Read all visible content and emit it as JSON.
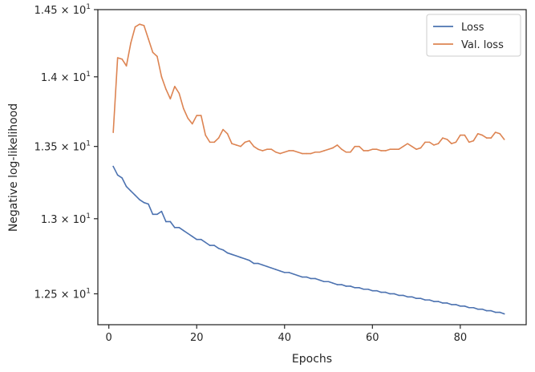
{
  "chart_data": {
    "type": "line",
    "title": "",
    "xlabel": "Epochs",
    "ylabel": "Negative log-likelihood",
    "xlim": [
      -2.5,
      95
    ],
    "ylim": [
      12.3,
      14.5
    ],
    "y_scale": "log",
    "grid": false,
    "legend_position": "top-right",
    "x_ticks": [
      0,
      20,
      40,
      60,
      80
    ],
    "x_tick_labels": [
      "0",
      "20",
      "40",
      "60",
      "80"
    ],
    "y_ticks": [
      12.5,
      13.0,
      13.5,
      14.0,
      14.5
    ],
    "y_tick_labels": [
      {
        "mantissa": "1.25",
        "base": "10",
        "exp": "1"
      },
      {
        "mantissa": "1.3",
        "base": "10",
        "exp": "1"
      },
      {
        "mantissa": "1.35",
        "base": "10",
        "exp": "1"
      },
      {
        "mantissa": "1.4",
        "base": "10",
        "exp": "1"
      },
      {
        "mantissa": "1.45",
        "base": "10",
        "exp": "1"
      }
    ],
    "series": [
      {
        "name": "Loss",
        "color": "#4c72b0",
        "x": [
          1,
          2,
          3,
          4,
          5,
          6,
          7,
          8,
          9,
          10,
          11,
          12,
          13,
          14,
          15,
          16,
          17,
          18,
          19,
          20,
          21,
          22,
          23,
          24,
          25,
          26,
          27,
          28,
          29,
          30,
          31,
          32,
          33,
          34,
          35,
          36,
          37,
          38,
          39,
          40,
          41,
          42,
          43,
          44,
          45,
          46,
          47,
          48,
          49,
          50,
          51,
          52,
          53,
          54,
          55,
          56,
          57,
          58,
          59,
          60,
          61,
          62,
          63,
          64,
          65,
          66,
          67,
          68,
          69,
          70,
          71,
          72,
          73,
          74,
          75,
          76,
          77,
          78,
          79,
          80,
          81,
          82,
          83,
          84,
          85,
          86,
          87,
          88,
          89,
          90
        ],
        "y": [
          13.36,
          13.3,
          13.28,
          13.22,
          13.19,
          13.16,
          13.13,
          13.11,
          13.1,
          13.03,
          13.03,
          13.05,
          12.98,
          12.98,
          12.94,
          12.94,
          12.92,
          12.9,
          12.88,
          12.86,
          12.86,
          12.84,
          12.82,
          12.82,
          12.8,
          12.79,
          12.77,
          12.76,
          12.75,
          12.74,
          12.73,
          12.72,
          12.7,
          12.7,
          12.69,
          12.68,
          12.67,
          12.66,
          12.65,
          12.64,
          12.64,
          12.63,
          12.62,
          12.61,
          12.61,
          12.6,
          12.6,
          12.59,
          12.58,
          12.58,
          12.57,
          12.56,
          12.56,
          12.55,
          12.55,
          12.54,
          12.54,
          12.53,
          12.53,
          12.52,
          12.52,
          12.51,
          12.51,
          12.5,
          12.5,
          12.49,
          12.49,
          12.48,
          12.48,
          12.47,
          12.47,
          12.46,
          12.46,
          12.45,
          12.45,
          12.44,
          12.44,
          12.43,
          12.43,
          12.42,
          12.42,
          12.41,
          12.41,
          12.4,
          12.4,
          12.39,
          12.39,
          12.38,
          12.38,
          12.37
        ]
      },
      {
        "name": "Val. loss",
        "color": "#dd8452",
        "x": [
          1,
          2,
          3,
          4,
          5,
          6,
          7,
          8,
          9,
          10,
          11,
          12,
          13,
          14,
          15,
          16,
          17,
          18,
          19,
          20,
          21,
          22,
          23,
          24,
          25,
          26,
          27,
          28,
          29,
          30,
          31,
          32,
          33,
          34,
          35,
          36,
          37,
          38,
          39,
          40,
          41,
          42,
          43,
          44,
          45,
          46,
          47,
          48,
          49,
          50,
          51,
          52,
          53,
          54,
          55,
          56,
          57,
          58,
          59,
          60,
          61,
          62,
          63,
          64,
          65,
          66,
          67,
          68,
          69,
          70,
          71,
          72,
          73,
          74,
          75,
          76,
          77,
          78,
          79,
          80,
          81,
          82,
          83,
          84,
          85,
          86,
          87,
          88,
          89,
          90
        ],
        "y": [
          13.6,
          14.14,
          14.13,
          14.08,
          14.25,
          14.37,
          14.39,
          14.38,
          14.28,
          14.18,
          14.15,
          14.0,
          13.91,
          13.84,
          13.93,
          13.88,
          13.77,
          13.7,
          13.66,
          13.72,
          13.72,
          13.58,
          13.53,
          13.53,
          13.56,
          13.62,
          13.59,
          13.52,
          13.51,
          13.5,
          13.53,
          13.54,
          13.5,
          13.48,
          13.47,
          13.48,
          13.48,
          13.46,
          13.45,
          13.46,
          13.47,
          13.47,
          13.46,
          13.45,
          13.45,
          13.45,
          13.46,
          13.46,
          13.47,
          13.48,
          13.49,
          13.51,
          13.48,
          13.46,
          13.46,
          13.5,
          13.5,
          13.47,
          13.47,
          13.48,
          13.48,
          13.47,
          13.47,
          13.48,
          13.48,
          13.48,
          13.5,
          13.52,
          13.5,
          13.48,
          13.49,
          13.53,
          13.53,
          13.51,
          13.52,
          13.56,
          13.55,
          13.52,
          13.53,
          13.58,
          13.58,
          13.53,
          13.54,
          13.59,
          13.58,
          13.56,
          13.56,
          13.6,
          13.59,
          13.55
        ]
      }
    ]
  }
}
